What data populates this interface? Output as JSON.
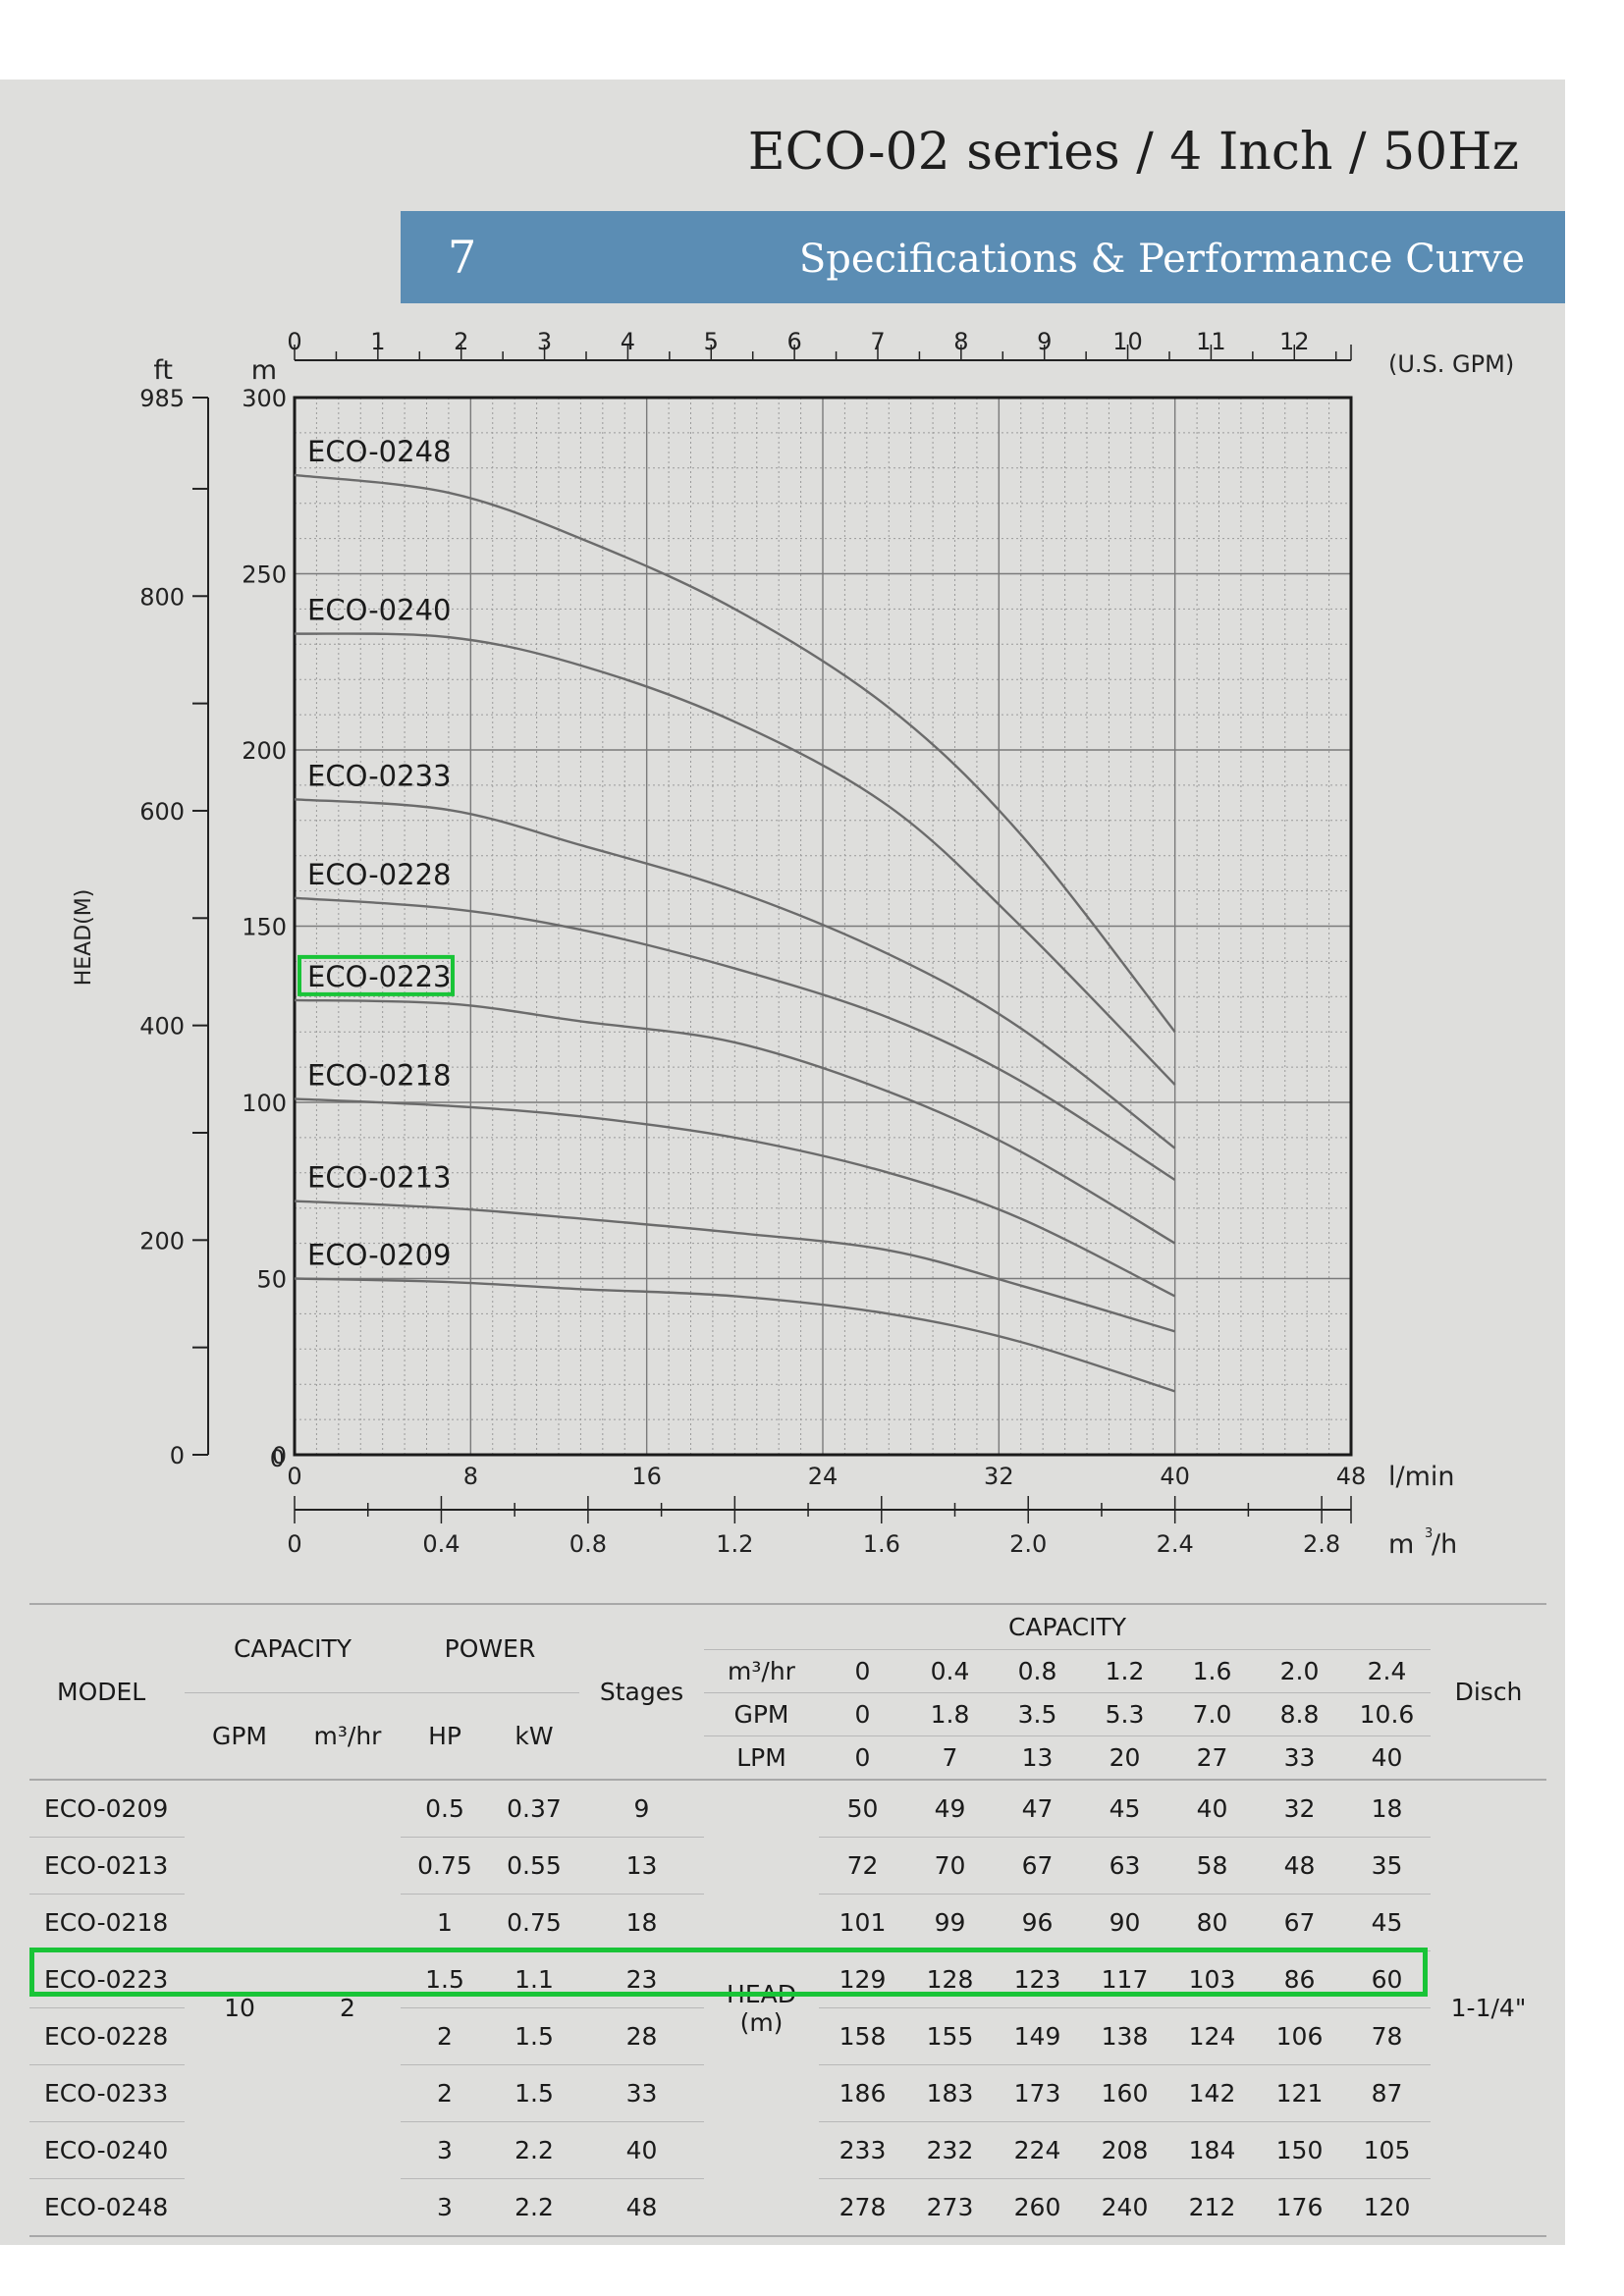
{
  "header": {
    "series_title": "ECO-02 series / 4 Inch / 50Hz",
    "section_number": "7",
    "section_title": "Specifications & Performance Curve"
  },
  "colors": {
    "banner": "#5b8db4",
    "panel": "#dededc",
    "curve": "#6b6b6b",
    "highlight": "#19c437"
  },
  "chart_data": {
    "type": "line",
    "ylabel": "HEAD(M)",
    "y_unit_left_outer": "ft",
    "y_unit_left_inner": "m",
    "ylim": [
      0,
      300
    ],
    "xlim_lpm": [
      0,
      48
    ],
    "y_ticks_m": [
      "300",
      "250",
      "200",
      "150",
      "100",
      "50",
      "0"
    ],
    "y_ticks_ft": [
      "985",
      "800",
      "600",
      "400",
      "200",
      "0"
    ],
    "x_top_unit": "(U.S. GPM)",
    "x_top_ticks": [
      "0",
      "1",
      "2",
      "3",
      "4",
      "5",
      "6",
      "7",
      "8",
      "9",
      "10",
      "11",
      "12"
    ],
    "x_bottom_unit": "l/min",
    "x_bottom_ticks": [
      "0",
      "8",
      "16",
      "24",
      "32",
      "40",
      "48"
    ],
    "x_m3h_unit": "m",
    "x_m3h_unit_sup": "3",
    "x_m3h_unit_tail": "/h",
    "x_m3h_ticks": [
      "0",
      "0.4",
      "0.8",
      "1.2",
      "1.6",
      "2.0",
      "2.4",
      "2.8"
    ],
    "grid": true,
    "x_lpm": [
      0,
      7,
      13,
      20,
      27,
      33,
      40
    ],
    "highlighted_series": "ECO-0223",
    "series": [
      {
        "name": "ECO-0248",
        "values": [
          278,
          273,
          260,
          240,
          212,
          176,
          120
        ]
      },
      {
        "name": "ECO-0240",
        "values": [
          233,
          232,
          224,
          208,
          184,
          150,
          105
        ]
      },
      {
        "name": "ECO-0233",
        "values": [
          186,
          183,
          173,
          160,
          142,
          121,
          87
        ]
      },
      {
        "name": "ECO-0228",
        "values": [
          158,
          155,
          149,
          138,
          124,
          106,
          78
        ]
      },
      {
        "name": "ECO-0223",
        "values": [
          129,
          128,
          123,
          117,
          103,
          86,
          60
        ]
      },
      {
        "name": "ECO-0218",
        "values": [
          101,
          99,
          96,
          90,
          80,
          67,
          45
        ]
      },
      {
        "name": "ECO-0213",
        "values": [
          72,
          70,
          67,
          63,
          58,
          48,
          35
        ]
      },
      {
        "name": "ECO-0209",
        "values": [
          50,
          49,
          47,
          45,
          40,
          32,
          18
        ]
      }
    ]
  },
  "table": {
    "headers": {
      "model": "MODEL",
      "capacity": "CAPACITY",
      "gpm": "GPM",
      "m3hr": "m³/hr",
      "power": "POWER",
      "hp": "HP",
      "kw": "kW",
      "stages": "Stages",
      "capacity2": "CAPACITY",
      "row_m3hr": "m³/hr",
      "row_gpm": "GPM",
      "row_lpm": "LPM",
      "disch": "Disch",
      "head_line1": "HEAD",
      "head_line2": "(m)"
    },
    "m3hr_values": [
      "0",
      "0.4",
      "0.8",
      "1.2",
      "1.6",
      "2.0",
      "2.4"
    ],
    "gpm_values": [
      "0",
      "1.8",
      "3.5",
      "5.3",
      "7.0",
      "8.8",
      "10.6"
    ],
    "lpm_values": [
      "0",
      "7",
      "13",
      "20",
      "27",
      "33",
      "40"
    ],
    "common_gpm": "10",
    "common_m3hr": "2",
    "disch_value": "1-1/4\"",
    "rows": [
      {
        "model": "ECO-0209",
        "hp": "0.5",
        "kw": "0.37",
        "stages": "9",
        "head": [
          "50",
          "49",
          "47",
          "45",
          "40",
          "32",
          "18"
        ]
      },
      {
        "model": "ECO-0213",
        "hp": "0.75",
        "kw": "0.55",
        "stages": "13",
        "head": [
          "72",
          "70",
          "67",
          "63",
          "58",
          "48",
          "35"
        ]
      },
      {
        "model": "ECO-0218",
        "hp": "1",
        "kw": "0.75",
        "stages": "18",
        "head": [
          "101",
          "99",
          "96",
          "90",
          "80",
          "67",
          "45"
        ]
      },
      {
        "model": "ECO-0223",
        "hp": "1.5",
        "kw": "1.1",
        "stages": "23",
        "head": [
          "129",
          "128",
          "123",
          "117",
          "103",
          "86",
          "60"
        ]
      },
      {
        "model": "ECO-0228",
        "hp": "2",
        "kw": "1.5",
        "stages": "28",
        "head": [
          "158",
          "155",
          "149",
          "138",
          "124",
          "106",
          "78"
        ]
      },
      {
        "model": "ECO-0233",
        "hp": "2",
        "kw": "1.5",
        "stages": "33",
        "head": [
          "186",
          "183",
          "173",
          "160",
          "142",
          "121",
          "87"
        ]
      },
      {
        "model": "ECO-0240",
        "hp": "3",
        "kw": "2.2",
        "stages": "40",
        "head": [
          "233",
          "232",
          "224",
          "208",
          "184",
          "150",
          "105"
        ]
      },
      {
        "model": "ECO-0248",
        "hp": "3",
        "kw": "2.2",
        "stages": "48",
        "head": [
          "278",
          "273",
          "260",
          "240",
          "212",
          "176",
          "120"
        ]
      }
    ]
  }
}
